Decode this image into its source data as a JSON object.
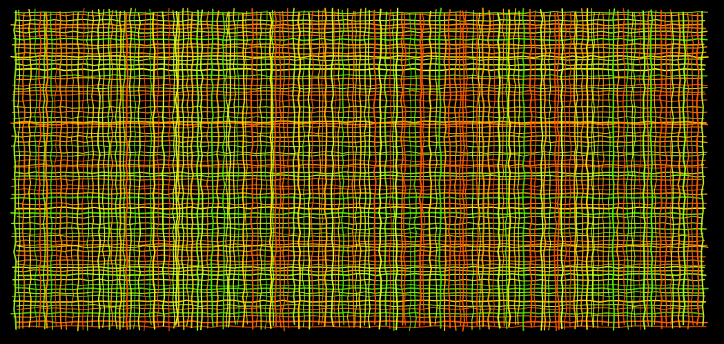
{
  "artwork": {
    "subject": "woven-thread-grid",
    "background_color": "#000000",
    "thread_palette": [
      "#ff5a00",
      "#ff8a00",
      "#ffb000",
      "#ffe000",
      "#d8ff20",
      "#9cff10",
      "#55ee00"
    ]
  }
}
